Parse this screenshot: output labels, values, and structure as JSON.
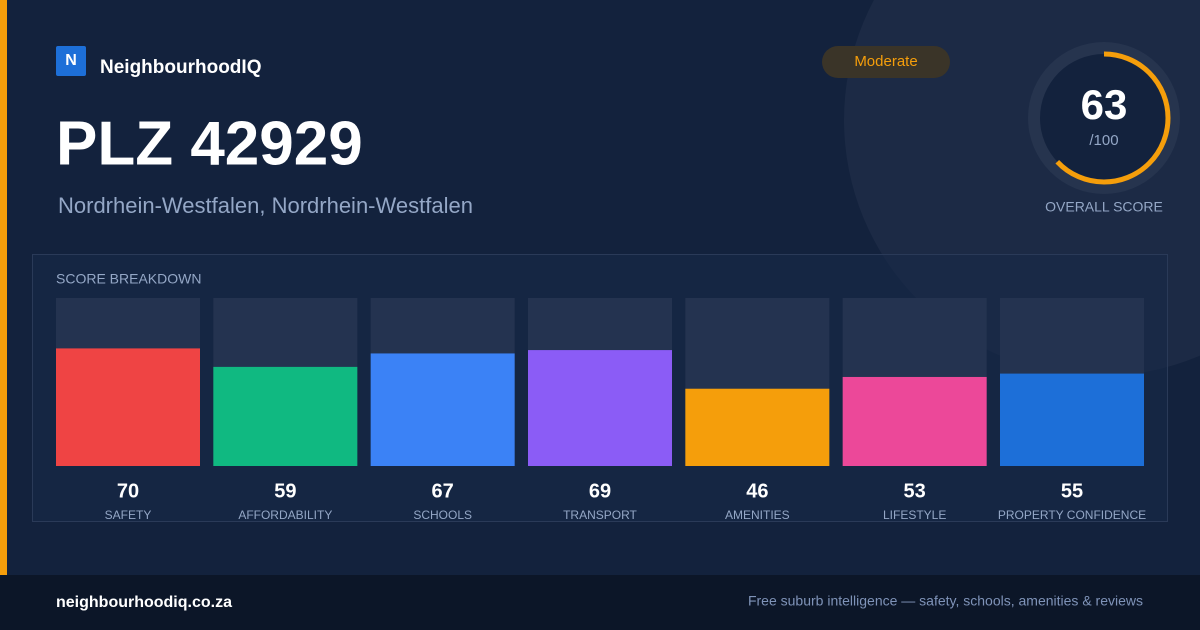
{
  "brand": {
    "logo_letter": "N",
    "name": "NeighbourhoodIQ"
  },
  "badge": "Moderate",
  "title": "PLZ 42929",
  "subtitle": "Nordrhein-Westfalen, Nordrhein-Westfalen",
  "overall": {
    "value": 63,
    "max": {
      "value": 100,
      "label": "/100"
    },
    "label": "OVERALL SCORE",
    "color": "#f59e0b"
  },
  "breakdown": {
    "title": "SCORE BREAKDOWN",
    "items": [
      {
        "name": "SAFETY",
        "value": 70,
        "color": "#ef4444"
      },
      {
        "name": "AFFORDABILITY",
        "value": 59,
        "color": "#10b981"
      },
      {
        "name": "SCHOOLS",
        "value": 67,
        "color": "#3b82f6"
      },
      {
        "name": "TRANSPORT",
        "value": 69,
        "color": "#8b5cf6"
      },
      {
        "name": "AMENITIES",
        "value": 46,
        "color": "#f59e0b"
      },
      {
        "name": "LIFESTYLE",
        "value": 53,
        "color": "#ec4899"
      },
      {
        "name": "PROPERTY CONFIDENCE",
        "value": 55,
        "color": "#1d6fd8"
      }
    ]
  },
  "footer": {
    "site": "neighbourhoodiq.co.za",
    "tagline": "Free suburb intelligence — safety, schools, amenities & reviews"
  }
}
